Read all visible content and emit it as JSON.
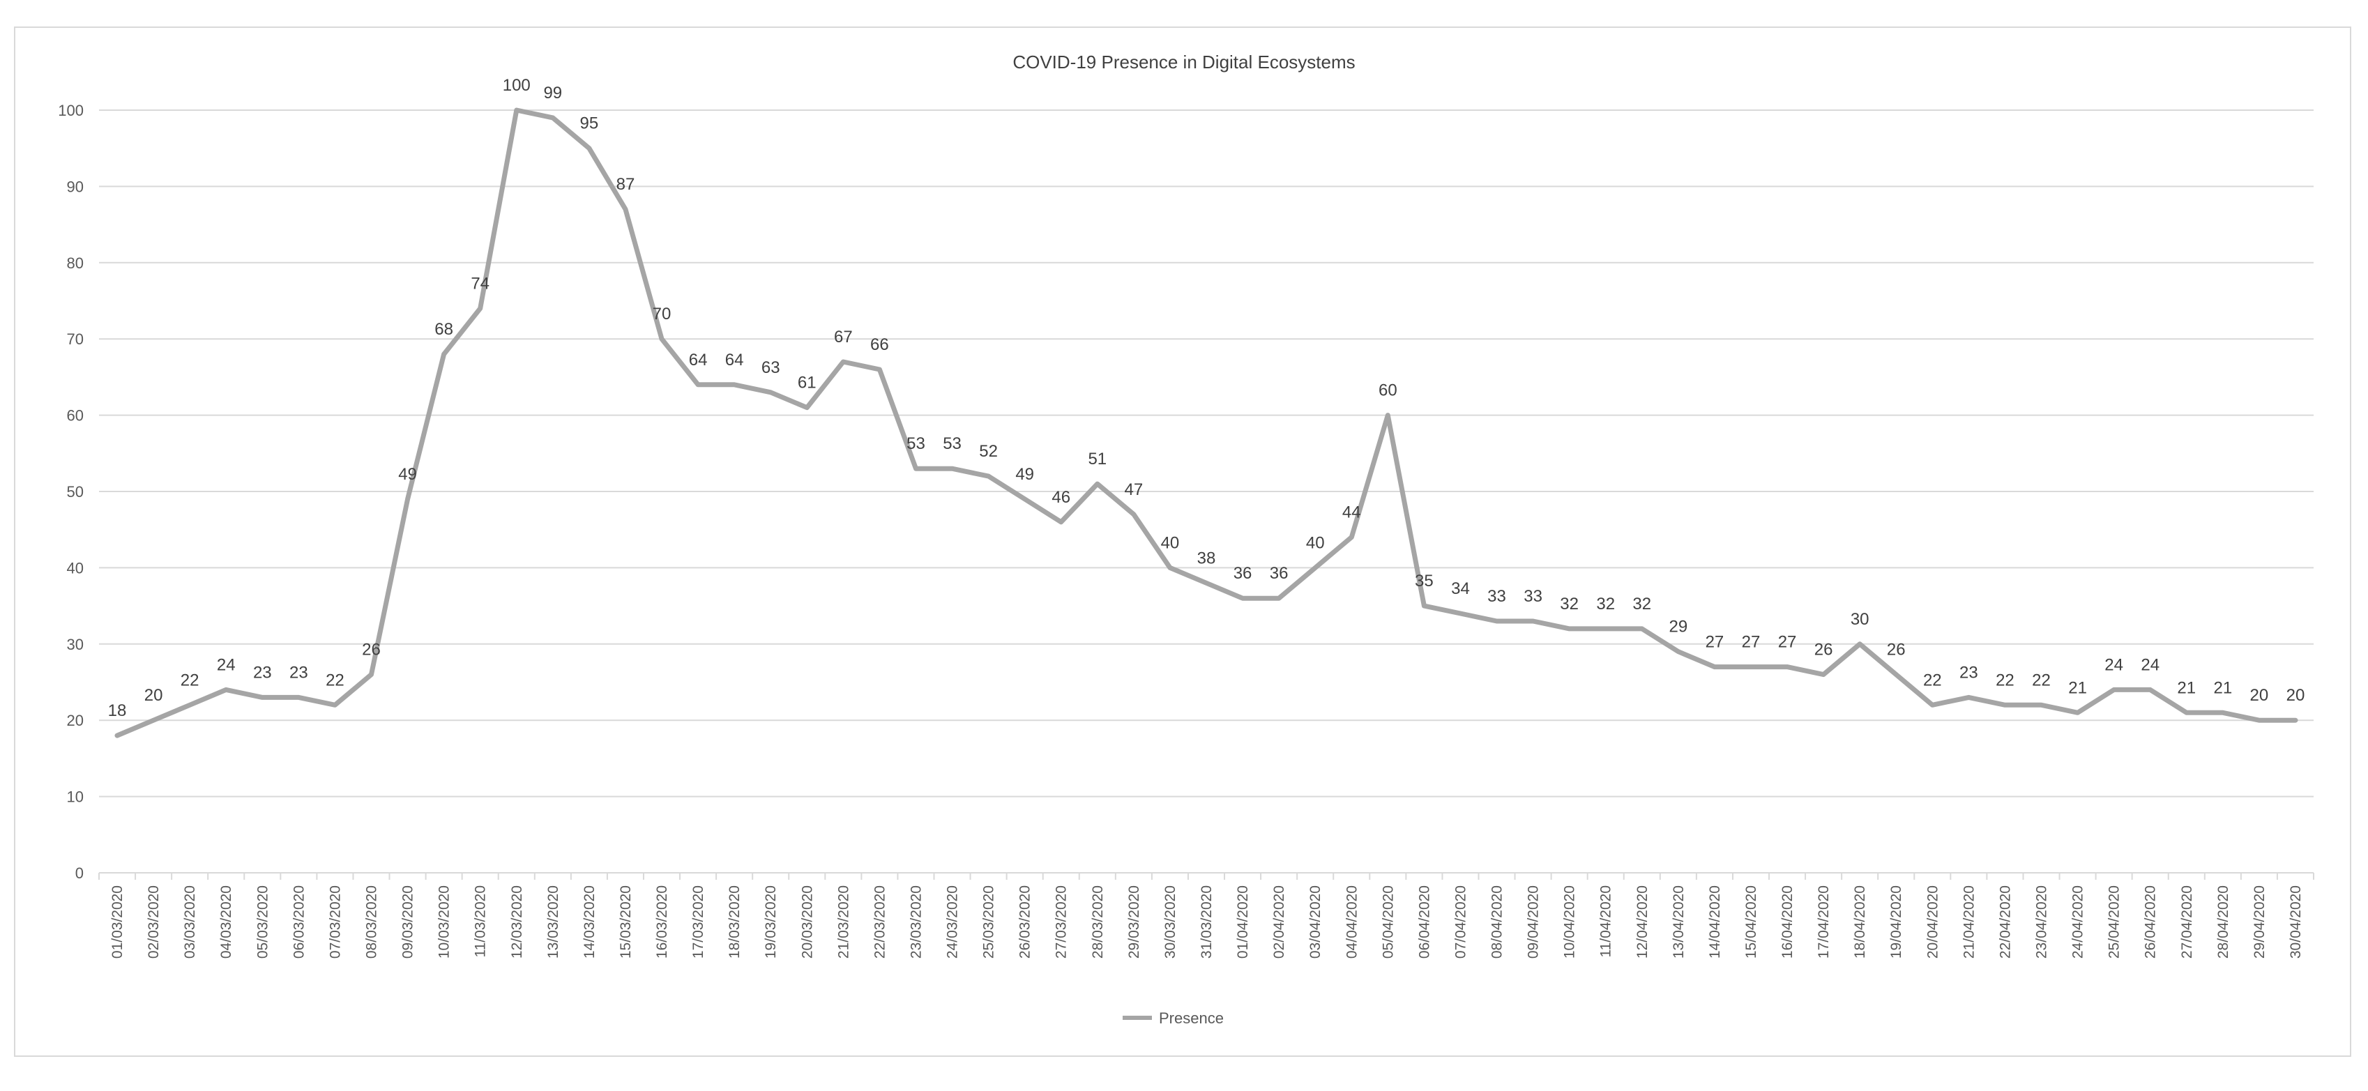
{
  "chart_data": {
    "type": "line",
    "title": "COVID-19 Presence in Digital Ecosystems",
    "xlabel": "",
    "ylabel": "",
    "ylim": [
      0,
      100
    ],
    "yticks": [
      0,
      10,
      20,
      30,
      40,
      50,
      60,
      70,
      80,
      90,
      100
    ],
    "grid": true,
    "legend_position": "bottom",
    "colors": {
      "series": "#a5a5a5",
      "grid": "#d9d9d9",
      "axis": "#d9d9d9"
    },
    "x": [
      "01/03/2020",
      "02/03/2020",
      "03/03/2020",
      "04/03/2020",
      "05/03/2020",
      "06/03/2020",
      "07/03/2020",
      "08/03/2020",
      "09/03/2020",
      "10/03/2020",
      "11/03/2020",
      "12/03/2020",
      "13/03/2020",
      "14/03/2020",
      "15/03/2020",
      "16/03/2020",
      "17/03/2020",
      "18/03/2020",
      "19/03/2020",
      "20/03/2020",
      "21/03/2020",
      "22/03/2020",
      "23/03/2020",
      "24/03/2020",
      "25/03/2020",
      "26/03/2020",
      "27/03/2020",
      "28/03/2020",
      "29/03/2020",
      "30/03/2020",
      "31/03/2020",
      "01/04/2020",
      "02/04/2020",
      "03/04/2020",
      "04/04/2020",
      "05/04/2020",
      "06/04/2020",
      "07/04/2020",
      "08/04/2020",
      "09/04/2020",
      "10/04/2020",
      "11/04/2020",
      "12/04/2020",
      "13/04/2020",
      "14/04/2020",
      "15/04/2020",
      "16/04/2020",
      "17/04/2020",
      "18/04/2020",
      "19/04/2020",
      "20/04/2020",
      "21/04/2020",
      "22/04/2020",
      "23/04/2020",
      "24/04/2020",
      "25/04/2020",
      "26/04/2020",
      "27/04/2020",
      "28/04/2020",
      "29/04/2020",
      "30/04/2020"
    ],
    "series": [
      {
        "name": "Presence",
        "values": [
          18,
          20,
          22,
          24,
          23,
          23,
          22,
          26,
          49,
          68,
          74,
          100,
          99,
          95,
          87,
          70,
          64,
          64,
          63,
          61,
          67,
          66,
          53,
          53,
          52,
          49,
          46,
          51,
          47,
          40,
          38,
          36,
          36,
          40,
          44,
          60,
          35,
          34,
          33,
          33,
          32,
          32,
          32,
          29,
          27,
          27,
          27,
          26,
          30,
          26,
          22,
          23,
          22,
          22,
          21,
          24,
          24,
          21,
          21,
          20,
          20
        ]
      }
    ]
  }
}
